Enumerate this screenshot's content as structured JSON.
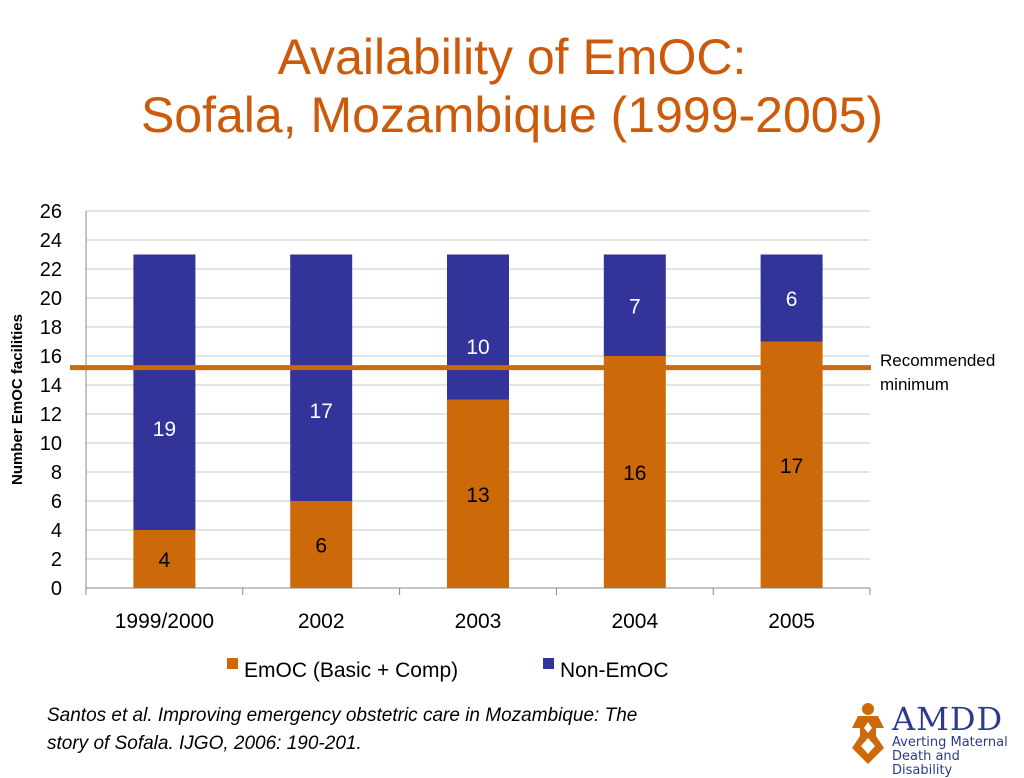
{
  "title": {
    "line1": "Availability of EmOC:",
    "line2": "Sofala, Mozambique (1999-2005)"
  },
  "citation": {
    "line1": "Santos et al. Improving emergency obstetric care in Mozambique: The",
    "line2": "story of Sofala.  IJGO, 2006: 190-201."
  },
  "logo": {
    "name": "AMDD",
    "tagline1": "Averting Maternal",
    "tagline2": "Death and Disability",
    "icon": "amdd-figure-icon"
  },
  "colors": {
    "title": "#cc5a0a",
    "emoc": "#cc6a0a",
    "non_emoc": "#32349a",
    "reference_line": "#cc6a0a",
    "logo": "#2c3b8c"
  },
  "chart_data": {
    "type": "bar",
    "stacked": true,
    "categories": [
      "1999/2000",
      "2002",
      "2003",
      "2004",
      "2005"
    ],
    "series": [
      {
        "name": "EmOC (Basic + Comp)",
        "values": [
          4,
          6,
          13,
          16,
          17
        ],
        "labels": [
          "4",
          "6",
          "13",
          "16",
          "17"
        ]
      },
      {
        "name": "Non-EmOC",
        "values": [
          19,
          17,
          10,
          7,
          6
        ],
        "labels": [
          "19",
          "17",
          "10",
          "7",
          "6"
        ]
      }
    ],
    "ylabel": "Number EmOC facilities",
    "ylim": [
      0,
      26
    ],
    "yticks": [
      0,
      2,
      4,
      6,
      8,
      10,
      12,
      14,
      16,
      18,
      20,
      22,
      24,
      26
    ],
    "grid": true,
    "legend": "bottom",
    "reference_line": {
      "value": 15.2,
      "label_line1": "Recommended",
      "label_line2": "minimum"
    }
  }
}
